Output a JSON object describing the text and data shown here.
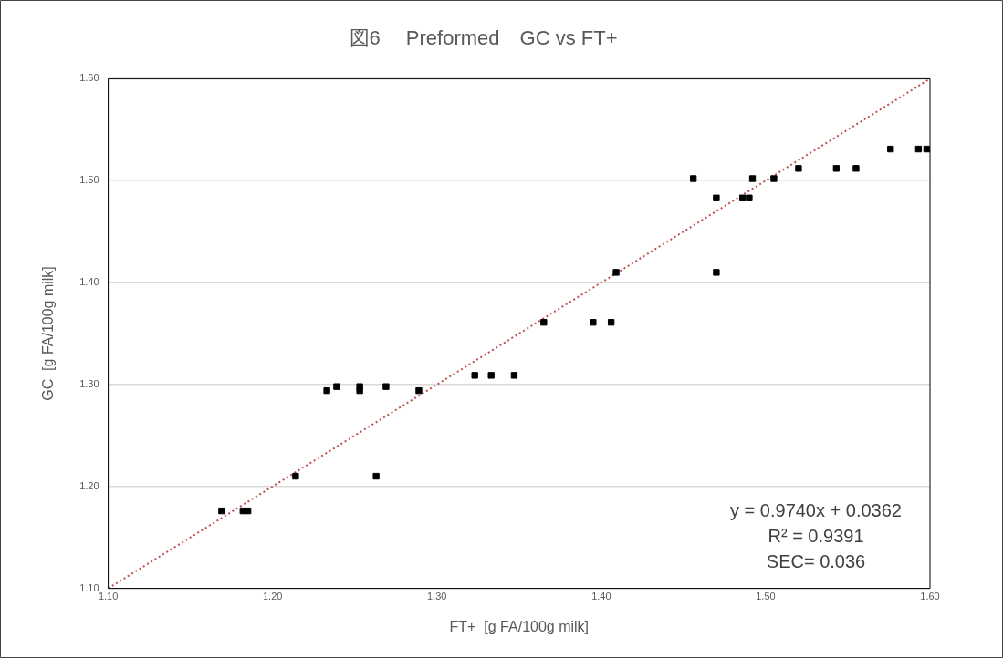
{
  "chart_data": {
    "type": "scatter",
    "title": "図6　 Preformed　GC vs FT+",
    "xlabel": "FT+  [g FA/100g milk]",
    "ylabel": "GC  [g FA/100g milk]",
    "xlim": [
      1.1,
      1.6
    ],
    "xticks": [
      {
        "value": 1.1,
        "label": "1.10"
      },
      {
        "value": 1.2,
        "label": "1.20"
      },
      {
        "value": 1.3,
        "label": "1.30"
      },
      {
        "value": 1.4,
        "label": "1.40"
      },
      {
        "value": 1.5,
        "label": "1.50"
      },
      {
        "value": 1.6,
        "label": "1.60"
      }
    ],
    "ylim": [
      1.1,
      1.6
    ],
    "yticks": [
      {
        "value": 1.1,
        "label": "1.10"
      },
      {
        "value": 1.2,
        "label": "1.20"
      },
      {
        "value": 1.3,
        "label": "1.30"
      },
      {
        "value": 1.4,
        "label": "1.40"
      },
      {
        "value": 1.5,
        "label": "1.50"
      },
      {
        "value": 1.6,
        "label": "1.60"
      }
    ],
    "grid": "y",
    "legend": false,
    "marker": "square",
    "series": [
      {
        "type": "scatter",
        "color": "#000000",
        "x": [
          1.169,
          1.182,
          1.185,
          1.214,
          1.263,
          1.233,
          1.239,
          1.253,
          1.253,
          1.269,
          1.289,
          1.323,
          1.333,
          1.347,
          1.365,
          1.395,
          1.406,
          1.409,
          1.47,
          1.456,
          1.47,
          1.486,
          1.49,
          1.492,
          1.505,
          1.52,
          1.543,
          1.555,
          1.576,
          1.593,
          1.598
        ],
        "values": [
          1.176,
          1.176,
          1.176,
          1.21,
          1.21,
          1.294,
          1.298,
          1.294,
          1.298,
          1.298,
          1.294,
          1.309,
          1.309,
          1.309,
          1.361,
          1.361,
          1.361,
          1.41,
          1.41,
          1.502,
          1.483,
          1.483,
          1.483,
          1.502,
          1.502,
          1.512,
          1.512,
          1.512,
          1.531,
          1.531,
          1.531
        ]
      },
      {
        "type": "line",
        "color": "#c0504d",
        "line_style": "dotted",
        "marker": "none",
        "x": [
          1.1,
          1.6
        ],
        "values": [
          1.1,
          1.6
        ]
      }
    ],
    "annotations": [
      "y = 0.9740x + 0.0362",
      "R² = 0.9391",
      "SEC= 0.036"
    ]
  }
}
